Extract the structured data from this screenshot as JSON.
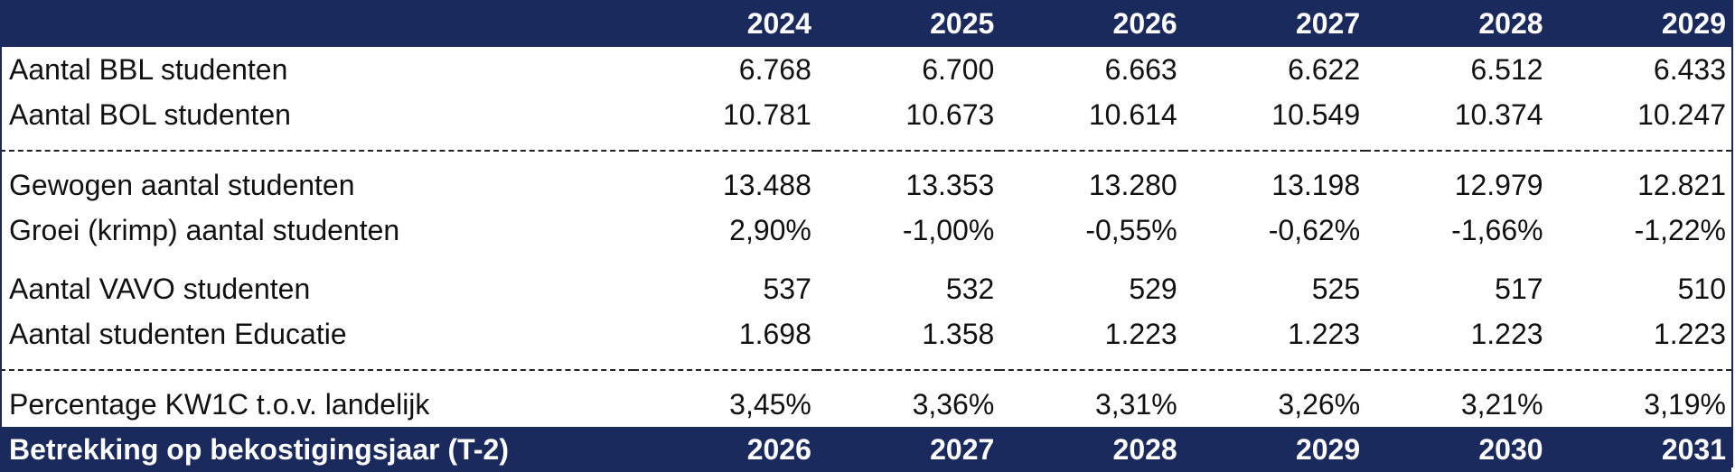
{
  "header": {
    "label": "",
    "years": [
      "2024",
      "2025",
      "2026",
      "2027",
      "2028",
      "2029"
    ]
  },
  "rows": {
    "bbl": {
      "label": "Aantal BBL studenten",
      "values": [
        "6.768",
        "6.700",
        "6.663",
        "6.622",
        "6.512",
        "6.433"
      ]
    },
    "bol": {
      "label": "Aantal BOL studenten",
      "values": [
        "10.781",
        "10.673",
        "10.614",
        "10.549",
        "10.374",
        "10.247"
      ]
    },
    "gewogen": {
      "label": "Gewogen aantal studenten",
      "values": [
        "13.488",
        "13.353",
        "13.280",
        "13.198",
        "12.979",
        "12.821"
      ]
    },
    "groei": {
      "label": "Groei (krimp) aantal studenten",
      "values": [
        "2,90%",
        "-1,00%",
        "-0,55%",
        "-0,62%",
        "-1,66%",
        "-1,22%"
      ]
    },
    "vavo": {
      "label": "Aantal VAVO studenten",
      "values": [
        "537",
        "532",
        "529",
        "525",
        "517",
        "510"
      ]
    },
    "educatie": {
      "label": "Aantal studenten Educatie",
      "values": [
        "1.698",
        "1.358",
        "1.223",
        "1.223",
        "1.223",
        "1.223"
      ]
    },
    "percentage": {
      "label": "Percentage KW1C t.o.v. landelijk",
      "values": [
        "3,45%",
        "3,36%",
        "3,31%",
        "3,26%",
        "3,21%",
        "3,19%"
      ]
    }
  },
  "footer": {
    "label": "Betrekking op bekostigingsjaar (T-2)",
    "years": [
      "2026",
      "2027",
      "2028",
      "2029",
      "2030",
      "2031"
    ]
  },
  "colors": {
    "header_bg": "#1b2a5c",
    "header_text": "#ffffff",
    "body_text": "#111111"
  }
}
